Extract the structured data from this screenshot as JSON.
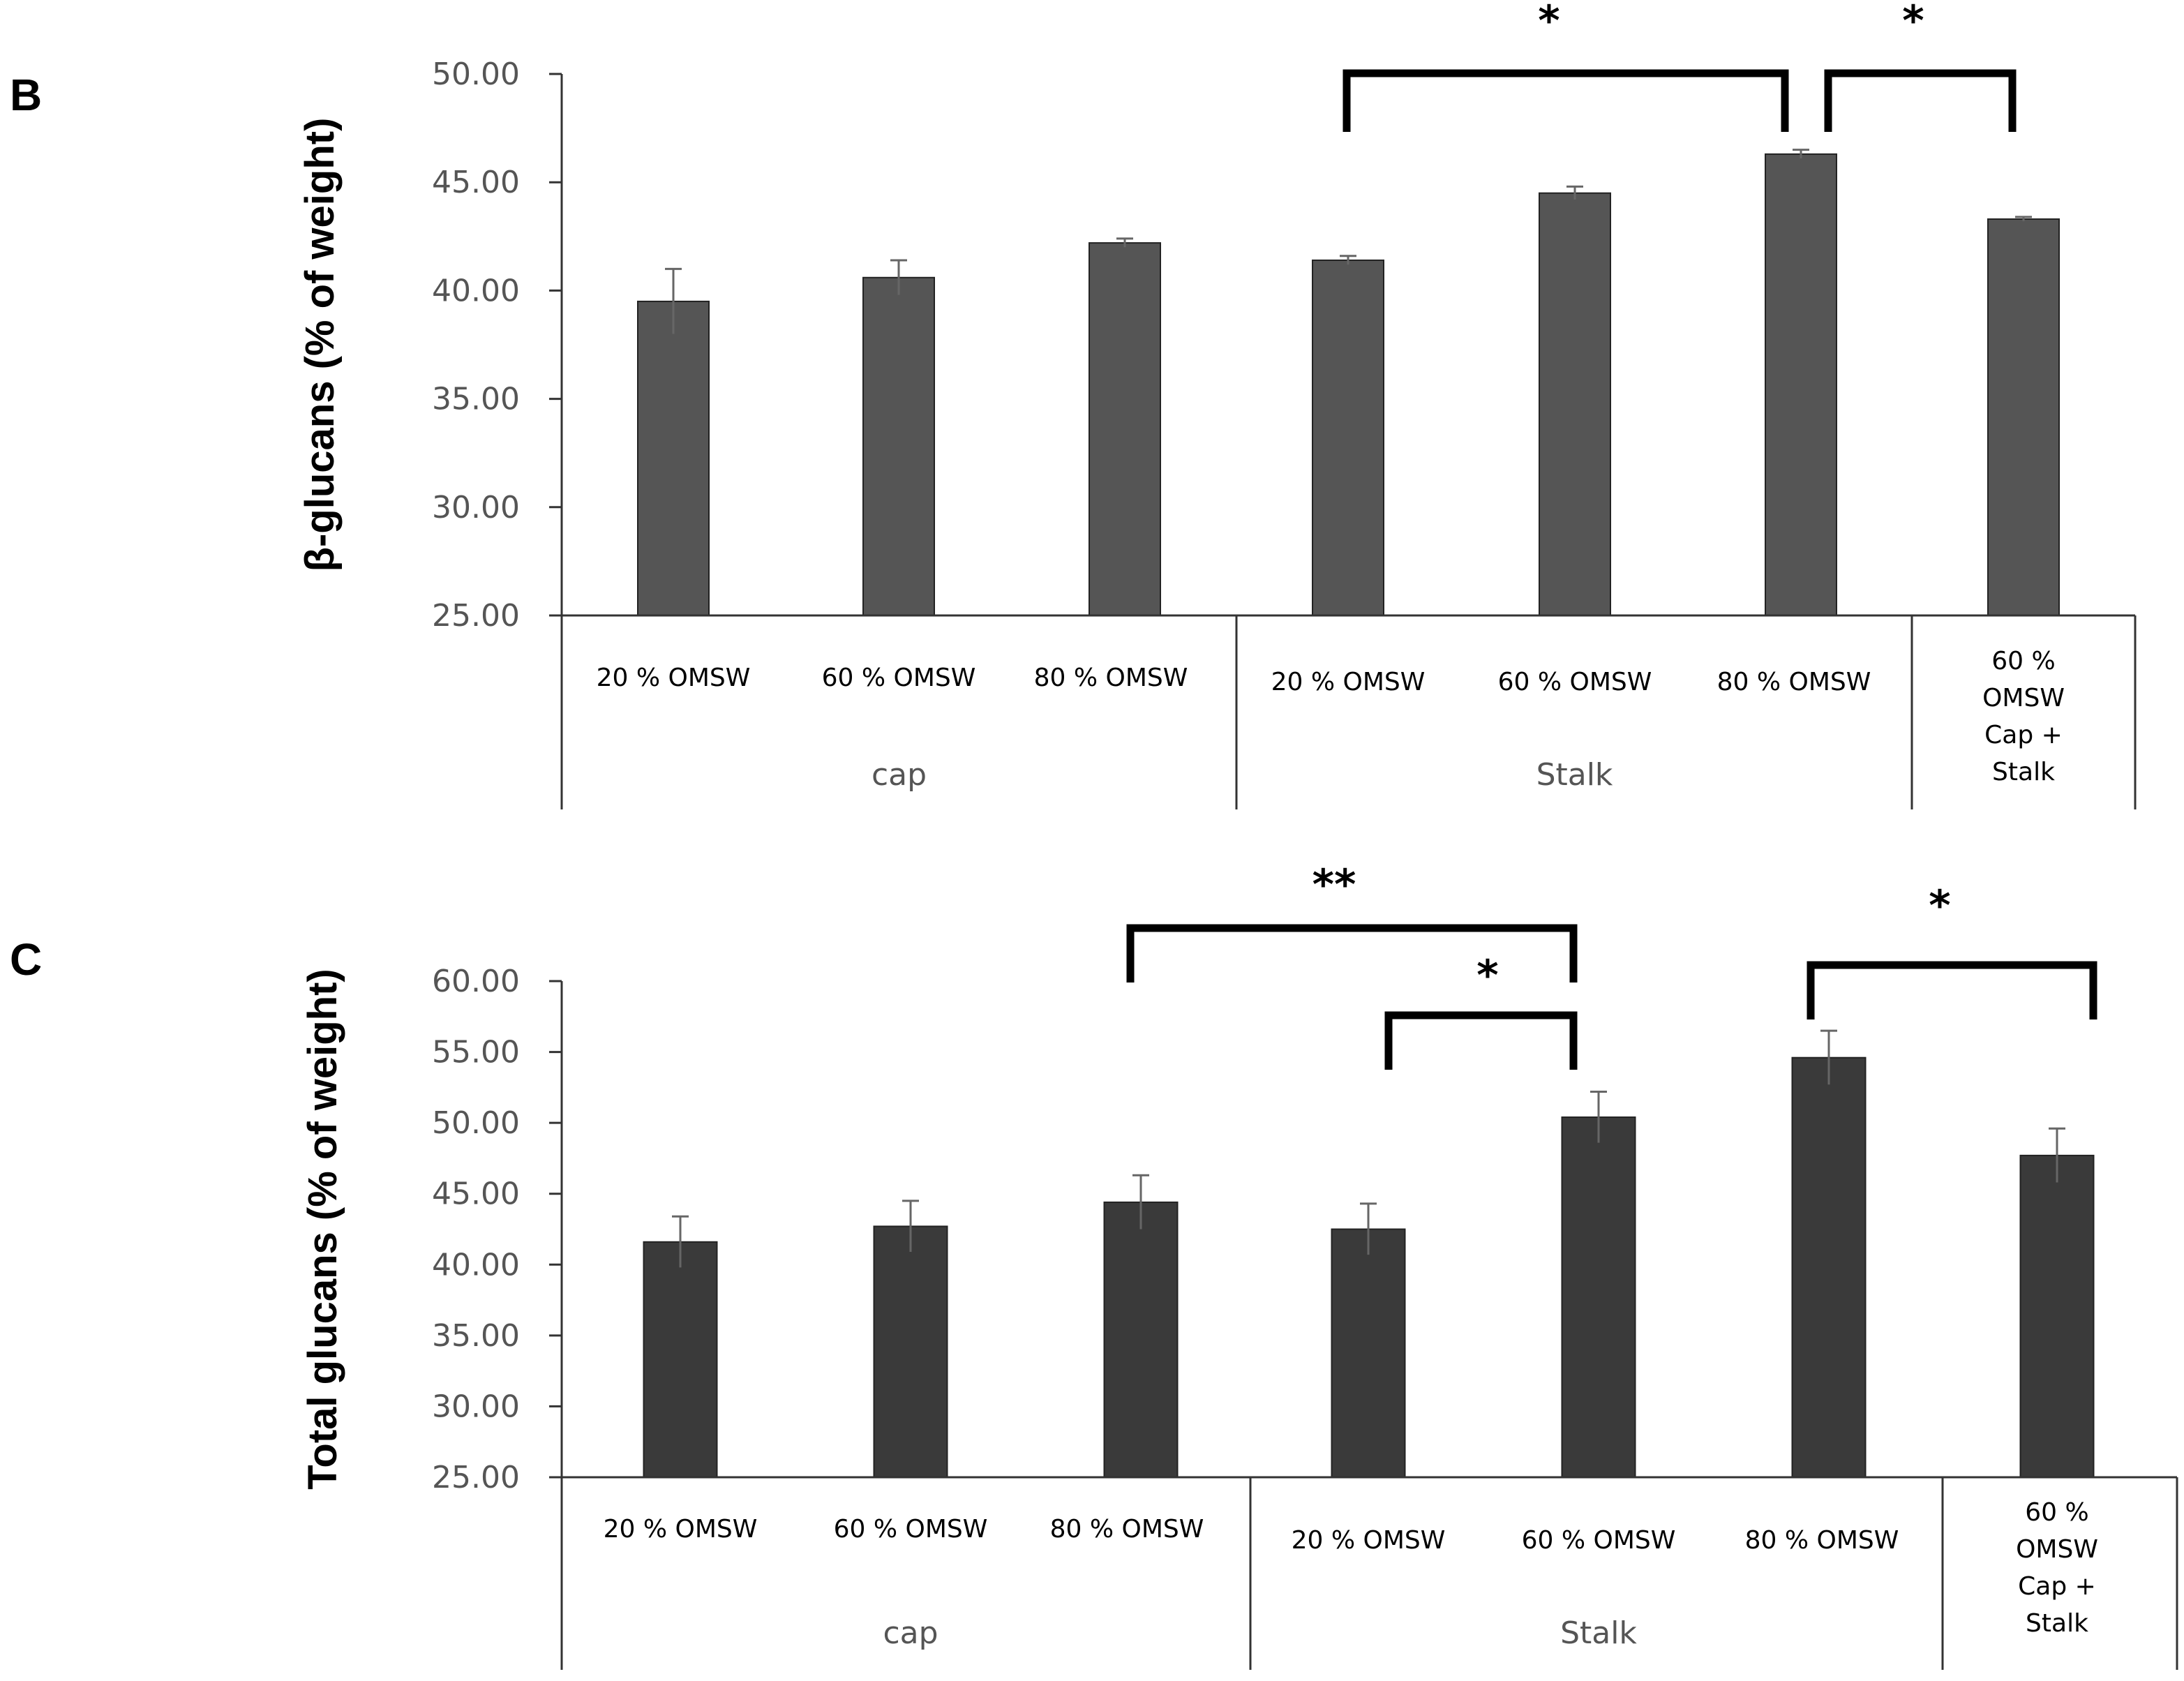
{
  "chart_data": [
    {
      "panel": "B",
      "type": "bar",
      "ylabel": "β-glucans (% of weight)",
      "ylim": [
        25,
        50
      ],
      "ytick_step": 5,
      "ytick_labels": [
        "25.00",
        "30.00",
        "35.00",
        "40.00",
        "45.00",
        "50.00"
      ],
      "bar_color": "#555555",
      "categories": [
        "20 % OMSW",
        "60 % OMSW",
        "80 % OMSW",
        "20 % OMSW",
        "60 % OMSW",
        "80 % OMSW",
        "60 % OMSW Cap + Stalk"
      ],
      "values": [
        39.5,
        40.6,
        42.2,
        41.4,
        44.5,
        46.3,
        43.3
      ],
      "errors": [
        1.5,
        0.8,
        0.2,
        0.2,
        0.3,
        0.2,
        0.1
      ],
      "groups": [
        {
          "label": "cap",
          "size": 3
        },
        {
          "label": "Stalk",
          "size": 3
        },
        {
          "label": "",
          "size": 1
        }
      ],
      "significance": [
        {
          "from": 3,
          "to": 5,
          "label": "*"
        },
        {
          "from": 5,
          "to": 6,
          "label": "*"
        }
      ]
    },
    {
      "panel": "C",
      "type": "bar",
      "ylabel": "Total glucans (% of weight)",
      "ylim": [
        25,
        60
      ],
      "ytick_step": 5,
      "ytick_labels": [
        "25.00",
        "30.00",
        "35.00",
        "40.00",
        "45.00",
        "50.00",
        "55.00",
        "60.00"
      ],
      "bar_color": "#3a3a3a",
      "categories": [
        "20 % OMSW",
        "60 % OMSW",
        "80 % OMSW",
        "20 % OMSW",
        "60 % OMSW",
        "80 % OMSW",
        "60 % OMSW Cap + Stalk"
      ],
      "values": [
        41.6,
        42.7,
        44.4,
        42.5,
        50.4,
        54.6,
        47.7
      ],
      "errors": [
        1.8,
        1.8,
        1.9,
        1.8,
        1.8,
        1.9,
        1.9
      ],
      "groups": [
        {
          "label": "cap",
          "size": 3
        },
        {
          "label": "Stalk",
          "size": 3
        },
        {
          "label": "",
          "size": 1
        }
      ],
      "significance": [
        {
          "from": 2,
          "to": 4,
          "label": "**"
        },
        {
          "from": 3,
          "to": 4,
          "label": "*"
        },
        {
          "from": 5,
          "to": 6,
          "label": "*"
        }
      ]
    }
  ]
}
